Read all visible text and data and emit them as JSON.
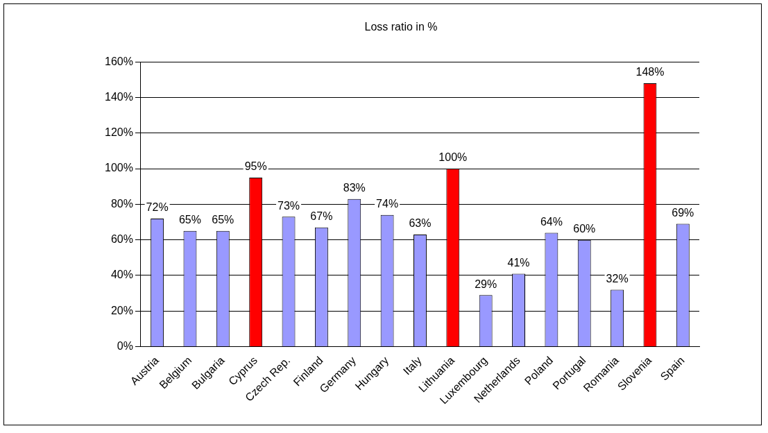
{
  "chart_data": {
    "type": "bar",
    "title": "Loss ratio in %",
    "categories": [
      "Austria",
      "Belgium",
      "Bulgaria",
      "Cyprus",
      "Czech Rep.",
      "Finland",
      "Germany",
      "Hungary",
      "Italy",
      "Lithuania",
      "Luxembourg",
      "Netherlands",
      "Poland",
      "Portugal",
      "Romania",
      "Slovenia",
      "Spain"
    ],
    "values": [
      72,
      65,
      65,
      95,
      73,
      67,
      83,
      74,
      63,
      100,
      29,
      41,
      64,
      60,
      32,
      148,
      69
    ],
    "value_labels": [
      "72%",
      "65%",
      "65%",
      "95%",
      "73%",
      "67%",
      "83%",
      "74%",
      "63%",
      "100%",
      "29%",
      "41%",
      "64%",
      "60%",
      "32%",
      "148%",
      "69%"
    ],
    "colors": [
      "#9999ff",
      "#9999ff",
      "#9999ff",
      "#ff0000",
      "#9999ff",
      "#9999ff",
      "#9999ff",
      "#9999ff",
      "#9999ff",
      "#ff0000",
      "#9999ff",
      "#9999ff",
      "#9999ff",
      "#9999ff",
      "#9999ff",
      "#ff0000",
      "#9999ff"
    ],
    "ylim": [
      0,
      160
    ],
    "yticks": [
      {
        "value": 0,
        "label": "0%"
      },
      {
        "value": 20,
        "label": "20%"
      },
      {
        "value": 40,
        "label": "40%"
      },
      {
        "value": 60,
        "label": "60%"
      },
      {
        "value": 80,
        "label": "80%"
      },
      {
        "value": 100,
        "label": "100%"
      },
      {
        "value": 120,
        "label": "120%"
      },
      {
        "value": 140,
        "label": "140%"
      },
      {
        "value": 160,
        "label": "160%"
      }
    ],
    "grid": "y",
    "legend": false
  }
}
